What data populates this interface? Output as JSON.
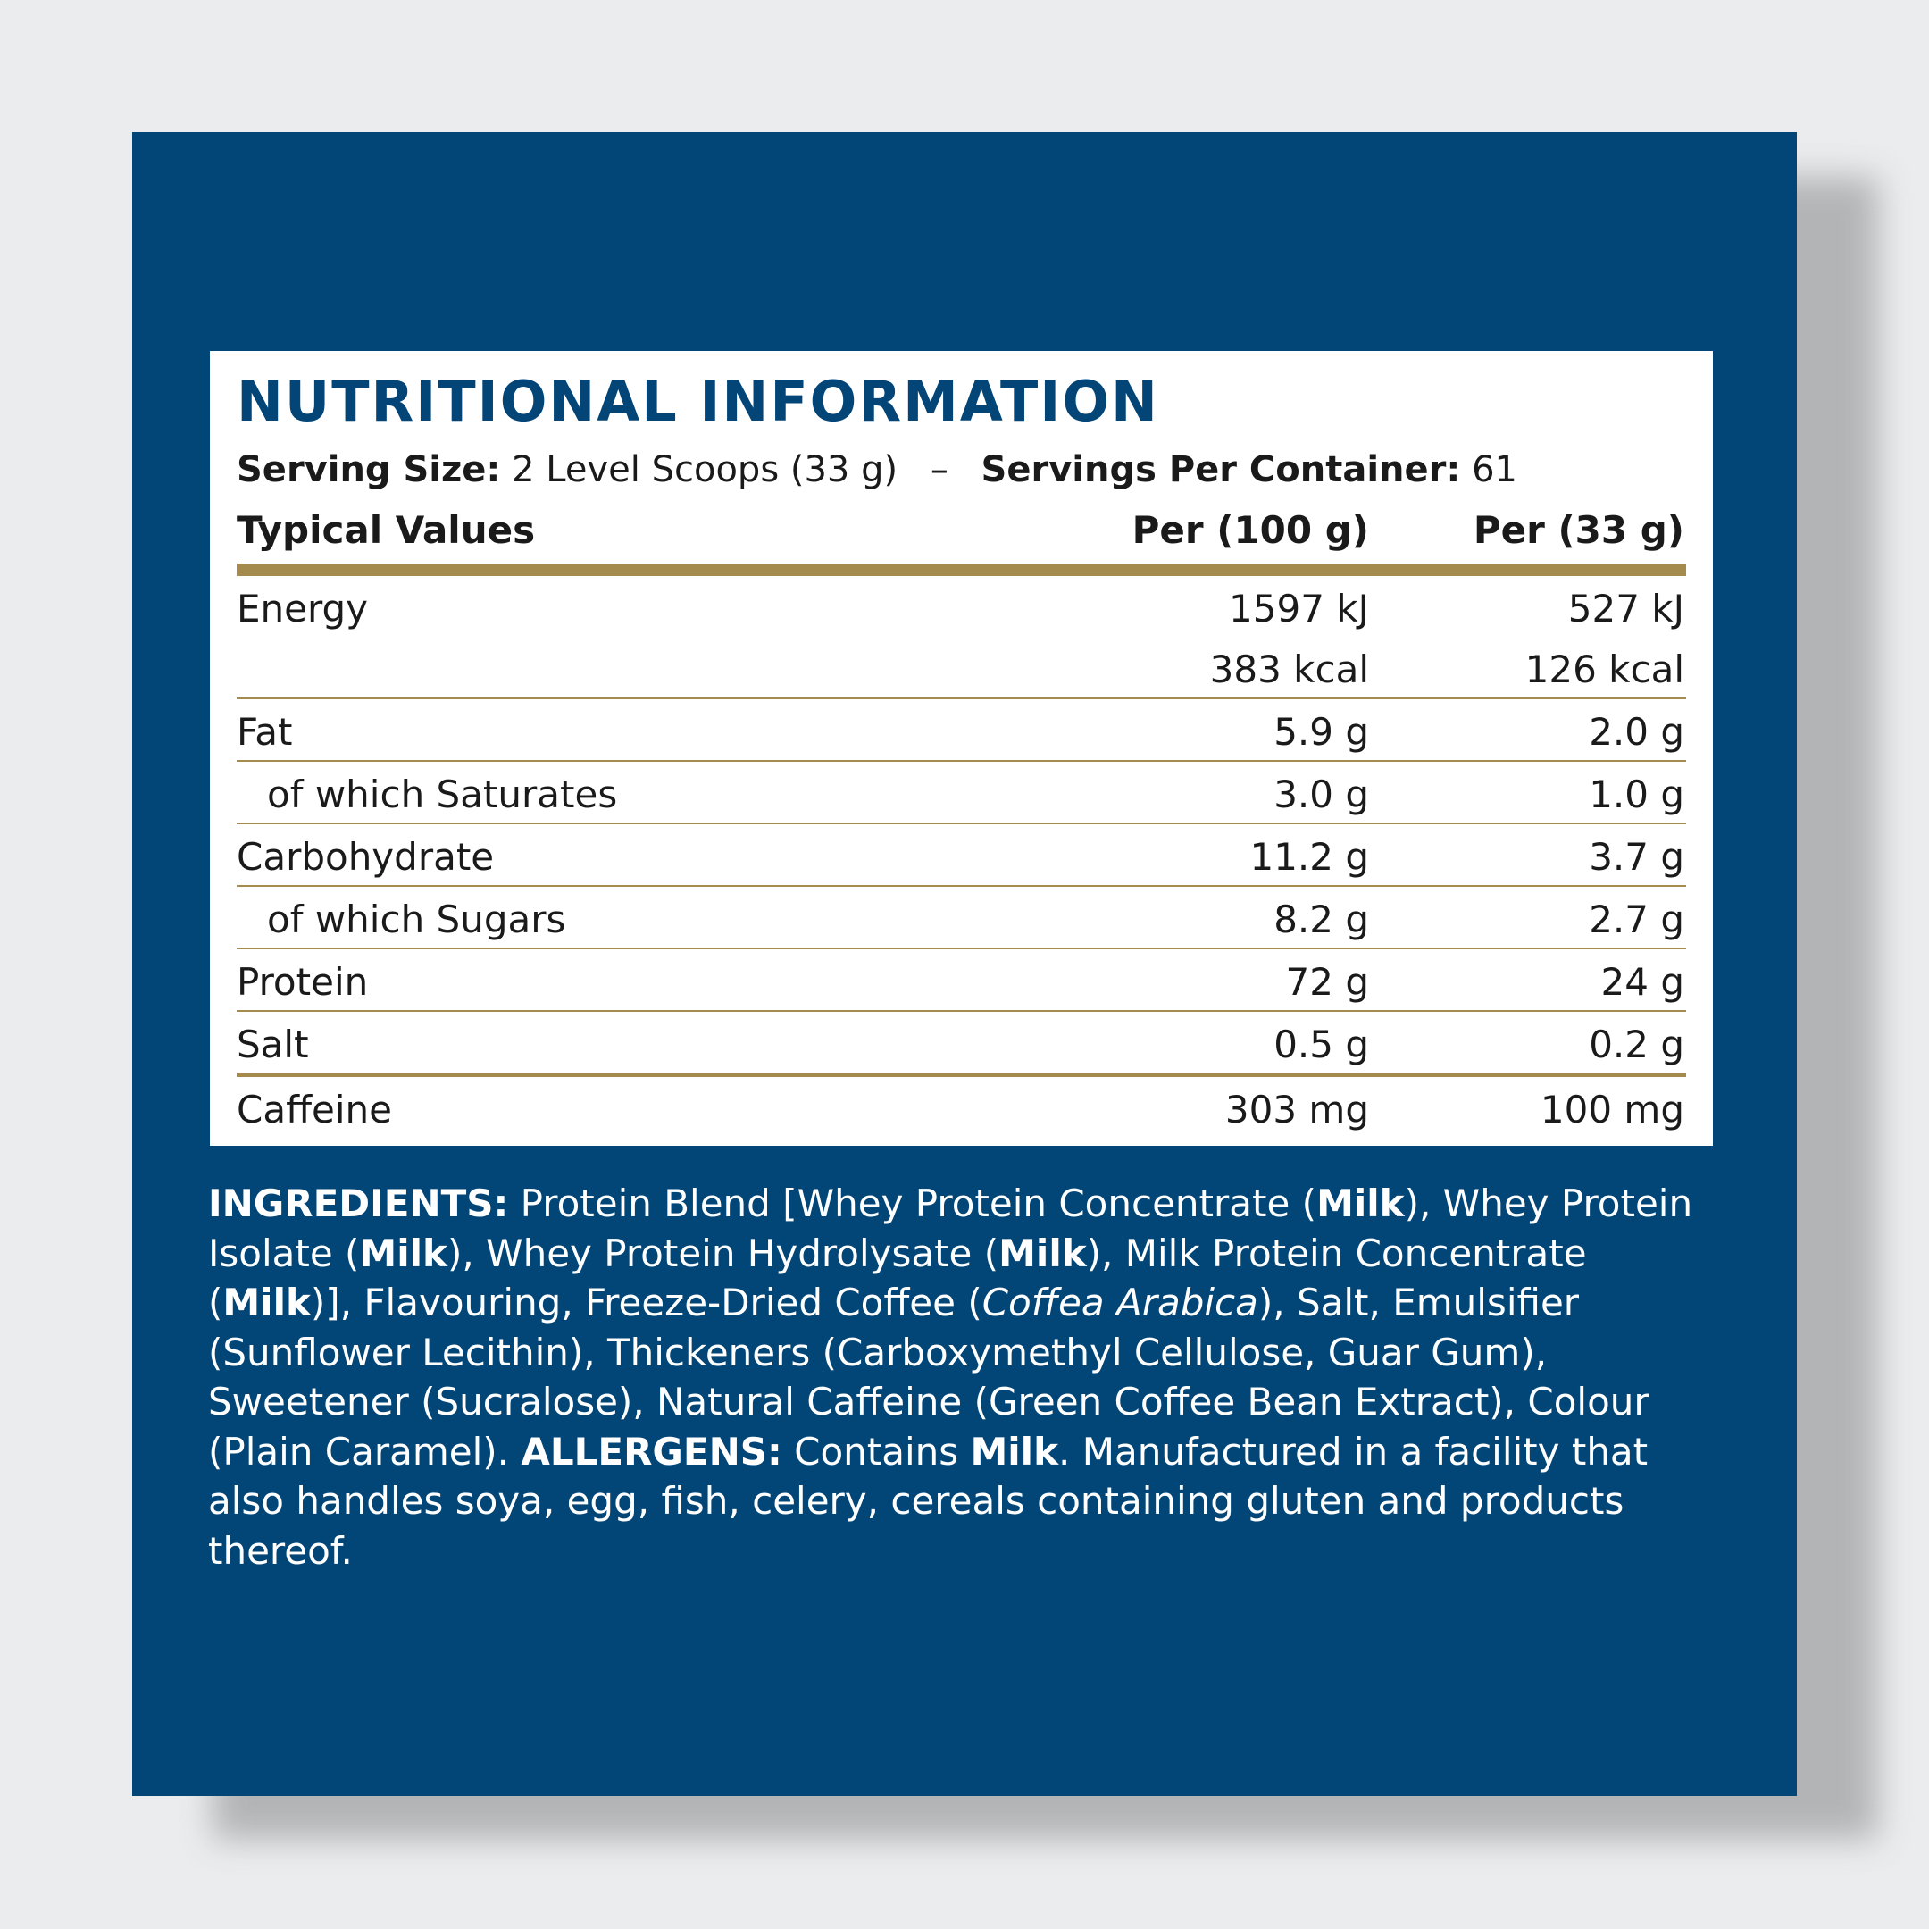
{
  "title": "NUTRITIONAL INFORMATION",
  "serving": {
    "size_label": "Serving Size:",
    "size_value": "2 Level Scoops (33 g)",
    "separator": "–",
    "per_container_label": "Servings Per Container:",
    "per_container_value": "61"
  },
  "table": {
    "headers": {
      "label": "Typical Values",
      "per100": "Per (100 g)",
      "perServing": "Per (33 g)"
    },
    "energy": {
      "label": "Energy",
      "per100_kj": "1597 kJ",
      "perServing_kj": "527 kJ",
      "per100_kcal": "383 kcal",
      "perServing_kcal": "126 kcal"
    },
    "rows": [
      {
        "label": "Fat",
        "per100": "5.9 g",
        "perServing": "2.0 g"
      },
      {
        "label": "of which Saturates",
        "per100": "3.0 g",
        "perServing": "1.0 g"
      },
      {
        "label": "Carbohydrate",
        "per100": "11.2 g",
        "perServing": "3.7 g"
      },
      {
        "label": "of which Sugars",
        "per100": "8.2 g",
        "perServing": "2.7 g"
      },
      {
        "label": "Protein",
        "per100": "72 g",
        "perServing": "24 g"
      },
      {
        "label": "Salt",
        "per100": "0.5 g",
        "perServing": "0.2 g"
      },
      {
        "label": "Caffeine",
        "per100": "303 mg",
        "perServing": "100 mg"
      }
    ]
  },
  "ingredients": {
    "heading": "INGREDIENTS:",
    "t1": " Protein Blend [Whey Protein Concentrate (",
    "milk": "Milk",
    "t2": "), Whey Protein Isolate (",
    "t3": "), Whey Protein Hydrolysate (",
    "t4": "), Milk Protein Concentrate (",
    "t5": ")], Flavouring, Freeze-Dried Coffee (",
    "coffea": "Coffea Arabica",
    "t6": "), Salt, Emulsifier (Sunflower Lecithin), Thickeners (Carboxymethyl Cellulose, Guar Gum), Sweetener (Sucralose), Natural Caffeine (Green Coffee Bean Extract), Colour (Plain Caramel). ",
    "allergens_heading": "ALLERGENS:",
    "t7": " Contains ",
    "t8": ". Manufactured in a facility that also handles soya, egg, fish, celery, cereals containing gluten and products thereof."
  },
  "colors": {
    "panel": "#024577",
    "accent_rule": "#a48a4d",
    "title": "#034577",
    "background": "#ebecee"
  }
}
